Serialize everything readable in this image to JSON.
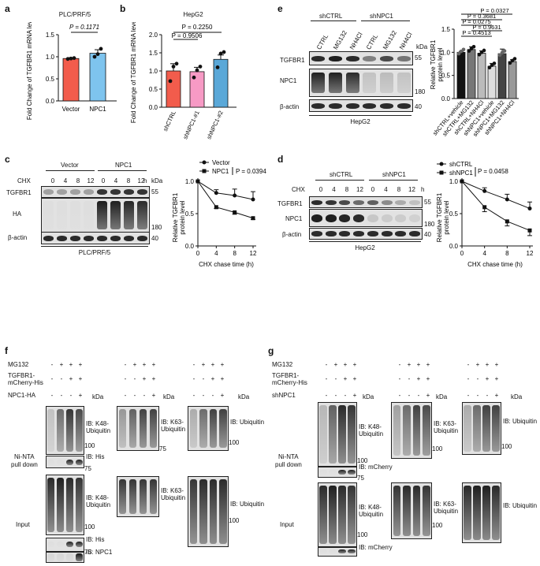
{
  "panels": {
    "a": {
      "letter": "a",
      "title": "PLC/PRF/5",
      "ylabel": "Fold Change of TGFBR1 mRNA level",
      "pval": "P = 0.1171",
      "yticks": [
        "0.0",
        "0.5",
        "1.0",
        "1.5"
      ],
      "xcats": [
        "Vector",
        "NPC1"
      ]
    },
    "b": {
      "letter": "b",
      "title": "HepG2",
      "ylabel": "Fold Change of TGFBR1 mRNA level",
      "pval1": "P = 0.2250",
      "pval2": "P = 0.9506",
      "yticks": [
        "0.0",
        "0.5",
        "1.0",
        "1.5",
        "2.0"
      ],
      "xcats": [
        "shCTRL",
        "shNPC1-#1",
        "shNPC1-#2"
      ]
    },
    "c": {
      "letter": "c",
      "groups": [
        "Vector",
        "NPC1"
      ],
      "chx": "CHX",
      "times": [
        "0",
        "4",
        "8",
        "12"
      ],
      "unit": "h",
      "kda": "kDa",
      "rows": [
        "TGFBR1",
        "HA",
        "β-actin"
      ],
      "markers": [
        "55",
        "180",
        "40"
      ],
      "cell": "PLC/PRF/5",
      "ylabel": "Relative TGFBR1 protein level",
      "xlabel": "CHX chase time (h)",
      "pval": "P = 0.0394",
      "legend": [
        "Vector",
        "NPC1"
      ]
    },
    "d": {
      "letter": "d",
      "groups": [
        "shCTRL",
        "shNPC1"
      ],
      "chx": "CHX",
      "times": [
        "0",
        "4",
        "8",
        "12"
      ],
      "unit": "h",
      "kda": "kDa",
      "rows": [
        "TGFBR1",
        "NPC1",
        "β-actin"
      ],
      "markers": [
        "55",
        "180",
        "40"
      ],
      "cell": "HepG2",
      "ylabel": "Relative TGFBR1 protein level",
      "xlabel": "CHX chase time (h)",
      "pval": "P = 0.0458",
      "legend": [
        "shCTRL",
        "shNPC1"
      ]
    },
    "e": {
      "letter": "e",
      "groups": [
        "shCTRL",
        "shNPC1"
      ],
      "lanes": [
        "CTRL",
        "MG132",
        "NH4Cl",
        "CTRL",
        "MG132",
        "NH4Cl"
      ],
      "kda": "kDa",
      "rows": [
        "TGFBR1",
        "NPC1",
        "β-actin"
      ],
      "markers": [
        "55",
        "180",
        "40"
      ],
      "cell": "HepG2",
      "ylabel": "Relative TGFBR1 protein level",
      "pvals": [
        "P = 0.0327",
        "P = 0.3681",
        "P = 0.0275",
        "P = 0.9631",
        "P = 0.4513"
      ],
      "xcats": [
        "shCTRL+vehicle",
        "shCTRL+MG132",
        "shCTRL+NH4Cl",
        "shNPC1+vehicle",
        "shNPC1+MG132",
        "shNPC1+NH4Cl"
      ],
      "yticks": [
        "0.0",
        "0.5",
        "1.0",
        "1.5"
      ]
    },
    "f": {
      "letter": "f",
      "treat": [
        "MG132",
        "TGFBR1-mCherry-His",
        "NPC1-HA"
      ],
      "signs": [
        [
          "-",
          "+",
          "+",
          "+"
        ],
        [
          "-",
          "-",
          "+",
          "+"
        ],
        [
          "-",
          "-",
          "-",
          "+"
        ]
      ],
      "kda": "kDa",
      "pulldown": "Ni-NTA pull down",
      "input": "Input",
      "ib": [
        "IB: K48-Ubiquitin",
        "IB: K63-Ubiquitin",
        "IB: Ubiquitin",
        "IB: His",
        "IB: NPC1",
        "IB: β-actin"
      ],
      "markers": [
        "100",
        "75",
        "100",
        "75",
        "100",
        "180",
        "40"
      ]
    },
    "g": {
      "letter": "g",
      "treat": [
        "MG132",
        "TGFBR1-mCherry-His",
        "shNPC1"
      ],
      "signs": [
        [
          "-",
          "+",
          "+",
          "+"
        ],
        [
          "-",
          "-",
          "+",
          "+"
        ],
        [
          "-",
          "-",
          "-",
          "+"
        ]
      ],
      "kda": "kDa",
      "pulldown": "Ni-NTA pull down",
      "input": "Input",
      "ib": [
        "IB: K48-Ubiquitin",
        "IB: K63-Ubiquitin",
        "IB: Ubiquitin",
        "IB: mCherry",
        "IB: NPC1",
        "IB: β-actin"
      ],
      "markers": [
        "100",
        "75",
        "100",
        "75",
        "100",
        "180",
        "40"
      ]
    }
  },
  "chart_data": [
    {
      "type": "bar",
      "panel": "a",
      "title": "PLC/PRF/5",
      "ylabel": "Fold Change of TGFBR1 mRNA level",
      "categories": [
        "Vector",
        "NPC1"
      ],
      "values": [
        0.96,
        1.08
      ],
      "errors": [
        0.02,
        0.08
      ],
      "ylim": [
        0,
        1.5
      ],
      "colors": [
        "#f25c4c",
        "#7ec4ee"
      ],
      "points": [
        [
          0.95,
          0.96,
          0.97
        ],
        [
          1.0,
          1.06,
          1.18
        ]
      ]
    },
    {
      "type": "bar",
      "panel": "b",
      "title": "HepG2",
      "ylabel": "Fold Change of TGFBR1 mRNA level",
      "categories": [
        "shCTRL",
        "shNPC1-#1",
        "shNPC1-#2"
      ],
      "values": [
        1.0,
        0.98,
        1.32
      ],
      "errors": [
        0.2,
        0.12,
        0.12
      ],
      "ylim": [
        0,
        2.0
      ],
      "colors": [
        "#f25c4c",
        "#f79ac5",
        "#5aa8d8"
      ],
      "points": [
        [
          0.72,
          1.12,
          1.2
        ],
        [
          0.82,
          1.02,
          1.12
        ],
        [
          1.1,
          1.48,
          1.52
        ]
      ]
    },
    {
      "type": "line",
      "panel": "c",
      "xlabel": "CHX chase time (h)",
      "ylabel": "Relative TGFBR1 protein level",
      "x": [
        0,
        4,
        8,
        12
      ],
      "ylim": [
        0,
        1.0
      ],
      "series": [
        {
          "name": "Vector",
          "values": [
            1.0,
            0.82,
            0.78,
            0.72
          ],
          "errors": [
            0,
            0.05,
            0.1,
            0.12
          ]
        },
        {
          "name": "NPC1",
          "values": [
            1.0,
            0.6,
            0.52,
            0.43
          ],
          "errors": [
            0,
            0.02,
            0.03,
            0.02
          ]
        }
      ]
    },
    {
      "type": "line",
      "panel": "d",
      "xlabel": "CHX chase time (h)",
      "ylabel": "Relative TGFBR1 protein level",
      "x": [
        0,
        4,
        8,
        12
      ],
      "ylim": [
        0,
        1.0
      ],
      "series": [
        {
          "name": "shCTRL",
          "values": [
            1.0,
            0.85,
            0.72,
            0.58
          ],
          "errors": [
            0,
            0.05,
            0.08,
            0.1
          ]
        },
        {
          "name": "shNPC1",
          "values": [
            1.0,
            0.6,
            0.38,
            0.24
          ],
          "errors": [
            0,
            0.07,
            0.07,
            0.08
          ]
        }
      ]
    },
    {
      "type": "bar",
      "panel": "e",
      "ylabel": "Relative TGFBR1 protein level",
      "categories": [
        "shCTRL+vehicle",
        "shCTRL+MG132",
        "shCTRL+NH4Cl",
        "shNPC1+vehicle",
        "shNPC1+MG132",
        "shNPC1+NH4Cl"
      ],
      "values": [
        1.0,
        1.06,
        0.98,
        0.7,
        0.97,
        0.8
      ],
      "errors": [
        0.02,
        0.06,
        0.05,
        0.06,
        0.1,
        0.04
      ],
      "ylim": [
        0,
        1.5
      ],
      "colors": [
        "#111111",
        "#777777",
        "#bbbbbb",
        "#dddddd",
        "#444444",
        "#999999"
      ]
    }
  ]
}
